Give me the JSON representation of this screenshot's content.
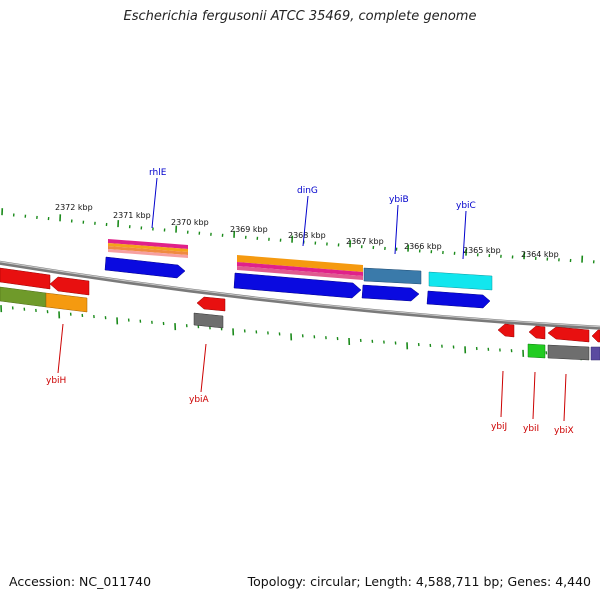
{
  "title": "Escherichia fergusonii ATCC 35469, complete genome",
  "footer": {
    "accession": "Accession: NC_011740",
    "summary": "Topology: circular; Length: 4,588,711 bp; Genes: 4,440"
  },
  "colors": {
    "backbone": "#888888",
    "tick": "#1a8a1a",
    "label_top": "#0000cc",
    "label_bottom": "#cc0000"
  },
  "kbp_labels": [
    "2372 kbp",
    "2371 kbp",
    "2370 kbp",
    "2369 kbp",
    "2368 kbp",
    "2367 kbp",
    "2366 kbp",
    "2365 kbp",
    "2364 kbp"
  ],
  "top_gene_labels": [
    "rhlE",
    "dinG",
    "ybiB",
    "ybiC"
  ],
  "bottom_gene_labels": [
    "ybiH",
    "ybiA",
    "ybiJ",
    "ybiI",
    "ybiX"
  ]
}
